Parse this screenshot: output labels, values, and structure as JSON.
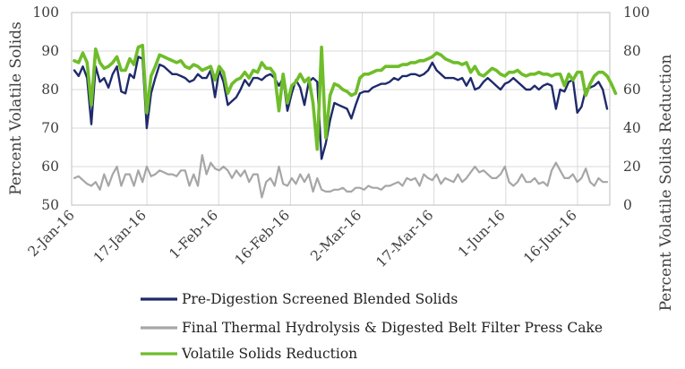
{
  "chart_data": {
    "type": "line",
    "title": "",
    "xlabel": "",
    "ylabel": "Percent Volatile Solids",
    "y2label": "Percent Volatile Solids Reduction",
    "ylim": [
      50,
      100
    ],
    "y2lim": [
      0,
      100
    ],
    "yticks": [
      "50",
      "60",
      "70",
      "80",
      "90",
      "100"
    ],
    "y2ticks": [
      "0",
      "20",
      "40",
      "60",
      "80",
      "100"
    ],
    "grid": true,
    "legend_position": "bottom",
    "x_ticks": [
      "2-Jan-16",
      "17-Jan-16",
      "1-Feb-16",
      "16-Feb-16",
      "2-Mar-16",
      "17-Mar-16",
      "1-Jun-16",
      "16-Jun-16"
    ],
    "series": [
      {
        "name": "Pre-Digestion Screened Blended Solids",
        "color": "#1f2a6b",
        "axis": "left",
        "values": [
          85,
          83.5,
          86,
          83,
          71,
          86,
          82,
          83,
          80.5,
          84,
          86,
          79.5,
          79,
          84,
          83,
          88.5,
          88,
          70,
          79,
          83,
          86.5,
          86,
          85,
          84,
          84,
          83.5,
          83,
          82,
          82.5,
          84,
          83,
          83,
          85,
          78,
          85,
          82,
          76,
          77,
          78,
          80,
          82.5,
          81,
          83,
          83,
          82.5,
          83.5,
          84,
          83,
          81,
          83,
          74.5,
          79,
          82.5,
          80.5,
          76,
          82,
          83,
          82,
          62,
          66,
          72,
          76.5,
          76,
          75.5,
          75,
          72.5,
          76,
          79,
          79.5,
          79.5,
          80.5,
          81,
          81.5,
          81.5,
          82,
          83,
          82.5,
          83.5,
          83.5,
          84,
          84,
          83.5,
          84,
          85,
          87,
          85,
          84,
          83,
          83,
          83,
          82.5,
          83,
          81,
          83,
          80,
          80.5,
          82,
          83,
          82,
          81,
          80,
          81.5,
          82,
          83,
          82,
          81,
          80,
          80,
          81,
          80,
          81,
          81.5,
          81,
          75,
          80,
          79.5,
          82,
          82.5,
          74,
          75.5,
          80,
          80.5,
          81,
          82,
          80,
          75
        ]
      },
      {
        "name": "Final Thermal Hydrolysis & Digested Belt Filter Press Cake",
        "color": "#a6a6a6",
        "axis": "left",
        "values": [
          57,
          57.5,
          56.5,
          55.5,
          55,
          56,
          54,
          58,
          55,
          58,
          60,
          55,
          58,
          58,
          55,
          59,
          56,
          60,
          57.5,
          58,
          59,
          58.5,
          58,
          58,
          57.5,
          59,
          59,
          55,
          58,
          55,
          63,
          58,
          61,
          59.5,
          59,
          60,
          59,
          57,
          59,
          57.5,
          59,
          56,
          58,
          58,
          52,
          56,
          57,
          55,
          60,
          55.5,
          55,
          57,
          55.5,
          58,
          56,
          58,
          53.5,
          57,
          54,
          53.5,
          53.5,
          54,
          54,
          54.5,
          53.5,
          53.5,
          54.5,
          54.5,
          54,
          55,
          54.5,
          54.5,
          54,
          55,
          55,
          55.5,
          56,
          55,
          57,
          56.5,
          57,
          55,
          58,
          57,
          56.5,
          58,
          55.5,
          57,
          56.5,
          56,
          58,
          56,
          57,
          58.5,
          60,
          58.5,
          59,
          58,
          57,
          57,
          58,
          60,
          56,
          55,
          56,
          58,
          56,
          56,
          57,
          55.5,
          56,
          55,
          59,
          61,
          59,
          57,
          57,
          58,
          56,
          57,
          59.5,
          56,
          55,
          57,
          56,
          56
        ]
      },
      {
        "name": "Volatile Solids Reduction",
        "color": "#6fbd2a",
        "axis": "right",
        "values": [
          75,
          74,
          79,
          74,
          52,
          81,
          74,
          71,
          72,
          74,
          77,
          70,
          70,
          76,
          73,
          82,
          83,
          48,
          67,
          72,
          78,
          77,
          76,
          75,
          74,
          75,
          72,
          71,
          73,
          72,
          70,
          71,
          72,
          65,
          72,
          69,
          58,
          63,
          65,
          66,
          69,
          66,
          70,
          69,
          74,
          71,
          71,
          68,
          49,
          68,
          53,
          62,
          64,
          68,
          64,
          66,
          53,
          29,
          82,
          35,
          57,
          63,
          62,
          60,
          59,
          57,
          58,
          66,
          68,
          68,
          69,
          70,
          70,
          72,
          72,
          72,
          72,
          73,
          73,
          74,
          74,
          75,
          75,
          76,
          77,
          79,
          78,
          76,
          75,
          74,
          74,
          73,
          74,
          69,
          72,
          68,
          67,
          69,
          71,
          70,
          68,
          67,
          69,
          69,
          70,
          68,
          67,
          68,
          68,
          69,
          68,
          68,
          67,
          68,
          68,
          62,
          68,
          65,
          69,
          69,
          57,
          63,
          67,
          69,
          69,
          67,
          63,
          58
        ]
      }
    ]
  }
}
